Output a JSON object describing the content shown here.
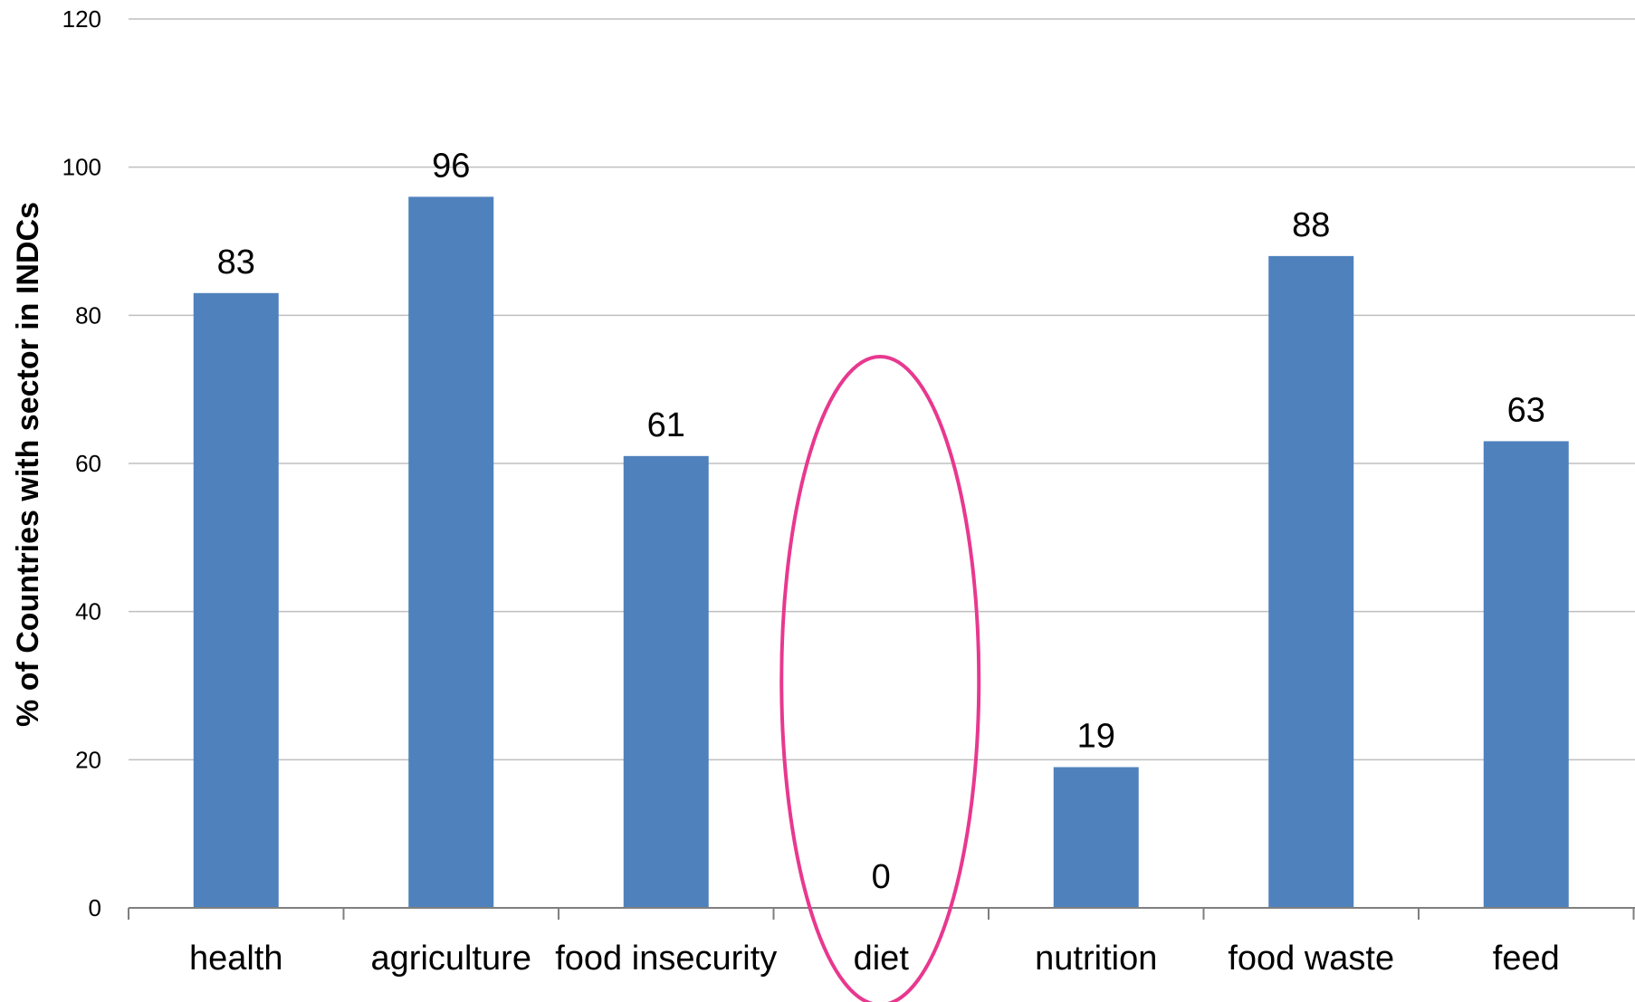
{
  "chart_data": {
    "type": "bar",
    "title": "",
    "xlabel": "",
    "ylabel": "% of Countries with sector in INDCs",
    "ylim": [
      0,
      120
    ],
    "yticks": [
      0,
      20,
      40,
      60,
      80,
      100,
      120
    ],
    "grid": true,
    "legend": "none",
    "categories": [
      "health",
      "agriculture",
      "food insecurity",
      "diet",
      "nutrition",
      "food waste",
      "feed"
    ],
    "values": [
      83,
      96,
      61,
      0,
      19,
      88,
      63
    ],
    "data_labels": [
      "83",
      "96",
      "61",
      "0",
      "19",
      "88",
      "63"
    ],
    "highlight": {
      "category": "diet",
      "shape": "ellipse",
      "color": "#E8388F"
    },
    "colors": {
      "bar": "#4F81BD",
      "grid": "#BFBFBF",
      "axis": "#7F7F7F"
    }
  }
}
